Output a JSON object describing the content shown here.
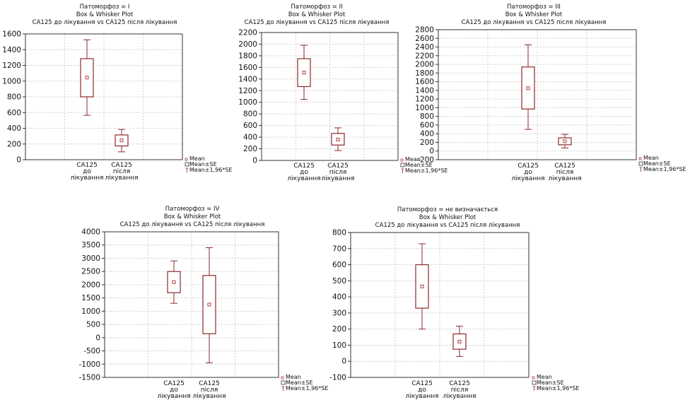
{
  "colors": {
    "box": "#8b2a2a",
    "whisker": "#8b2a2a",
    "mean": "#b23c3c",
    "grid": "#d0d0d0",
    "frame": "#333333"
  },
  "legend": {
    "mean": "Mean",
    "se": "Mean±SE",
    "ci": "Mean±1,96*SE"
  },
  "chart_data": [
    {
      "type": "box",
      "title_lines": [
        "Патоморфоз = I",
        "Box & Whisker Plot",
        "CA125 до лікування vs CA125 після лікування"
      ],
      "categories": [
        [
          "CA125",
          "до",
          "лікування"
        ],
        [
          "CA125",
          "після",
          "лікування"
        ]
      ],
      "ylim": [
        0,
        1600
      ],
      "yticks": [
        0,
        200,
        400,
        600,
        800,
        1000,
        1200,
        1400,
        1600
      ],
      "grid": true,
      "legend_position": "bottom-right",
      "series": [
        {
          "mean": 1045,
          "se_low": 800,
          "se_high": 1285,
          "ci_low": 565,
          "ci_high": 1525
        },
        {
          "mean": 245,
          "se_low": 175,
          "se_high": 315,
          "ci_low": 100,
          "ci_high": 385
        }
      ]
    },
    {
      "type": "box",
      "title_lines": [
        "Патоморфоз = II",
        "Box & Whisker Plot",
        "CA125 до лікування vs CA125 після лікування"
      ],
      "categories": [
        [
          "CA125",
          "до",
          "лікування"
        ],
        [
          "CA125",
          "після",
          "лікування"
        ]
      ],
      "ylim": [
        0,
        2200
      ],
      "yticks": [
        0,
        200,
        400,
        600,
        800,
        1000,
        1200,
        1400,
        1600,
        1800,
        2000,
        2200
      ],
      "grid": true,
      "legend_position": "bottom-right",
      "series": [
        {
          "mean": 1510,
          "se_low": 1270,
          "se_high": 1750,
          "ci_low": 1050,
          "ci_high": 1980
        },
        {
          "mean": 360,
          "se_low": 265,
          "se_high": 465,
          "ci_low": 170,
          "ci_high": 560
        }
      ]
    },
    {
      "type": "box",
      "title_lines": [
        "Патоморфоз = III",
        "Box & Whisker Plot",
        "CA125 до лікування vs CA125 після лікування"
      ],
      "categories": [
        [
          "CA125",
          "до",
          "лікування"
        ],
        [
          "CA125",
          "після",
          "лікування"
        ]
      ],
      "ylim": [
        -200,
        2800
      ],
      "yticks": [
        -200,
        0,
        200,
        400,
        600,
        800,
        1000,
        1200,
        1400,
        1600,
        1800,
        2000,
        2200,
        2400,
        2600,
        2800
      ],
      "grid": true,
      "legend_position": "bottom-right",
      "series": [
        {
          "mean": 1450,
          "se_low": 970,
          "se_high": 1940,
          "ci_low": 500,
          "ci_high": 2450
        },
        {
          "mean": 225,
          "se_low": 145,
          "se_high": 305,
          "ci_low": 70,
          "ci_high": 385
        }
      ]
    },
    {
      "type": "box",
      "title_lines": [
        "Патоморфоз = IV",
        "Box & Whisker Plot",
        "CA125 до лікування vs CA125 після лікування"
      ],
      "categories": [
        [
          "CA125",
          "до",
          "лікування"
        ],
        [
          "CA125",
          "після",
          "лікування"
        ]
      ],
      "ylim": [
        -1500,
        4000
      ],
      "yticks": [
        -1500,
        -1000,
        -500,
        0,
        500,
        1000,
        1500,
        2000,
        2500,
        3000,
        3500,
        4000
      ],
      "grid": true,
      "legend_position": "bottom-right",
      "series": [
        {
          "mean": 2100,
          "se_low": 1700,
          "se_high": 2500,
          "ci_low": 1300,
          "ci_high": 2900
        },
        {
          "mean": 1250,
          "se_low": 150,
          "se_high": 2350,
          "ci_low": -950,
          "ci_high": 3400
        }
      ]
    },
    {
      "type": "box",
      "title_lines": [
        "Патоморфоз = не визначається",
        "Box & Whisker Plot",
        "CA125 до лікування vs CA125 після лікування"
      ],
      "categories": [
        [
          "CA125",
          "до",
          "лікування"
        ],
        [
          "CA125",
          "після",
          "лікування"
        ]
      ],
      "ylim": [
        -100,
        800
      ],
      "yticks": [
        -100,
        0,
        100,
        200,
        300,
        400,
        500,
        600,
        700,
        800
      ],
      "grid": true,
      "legend_position": "bottom-right",
      "series": [
        {
          "mean": 465,
          "se_low": 330,
          "se_high": 600,
          "ci_low": 200,
          "ci_high": 730
        },
        {
          "mean": 122,
          "se_low": 75,
          "se_high": 170,
          "ci_low": 30,
          "ci_high": 218
        }
      ]
    }
  ]
}
